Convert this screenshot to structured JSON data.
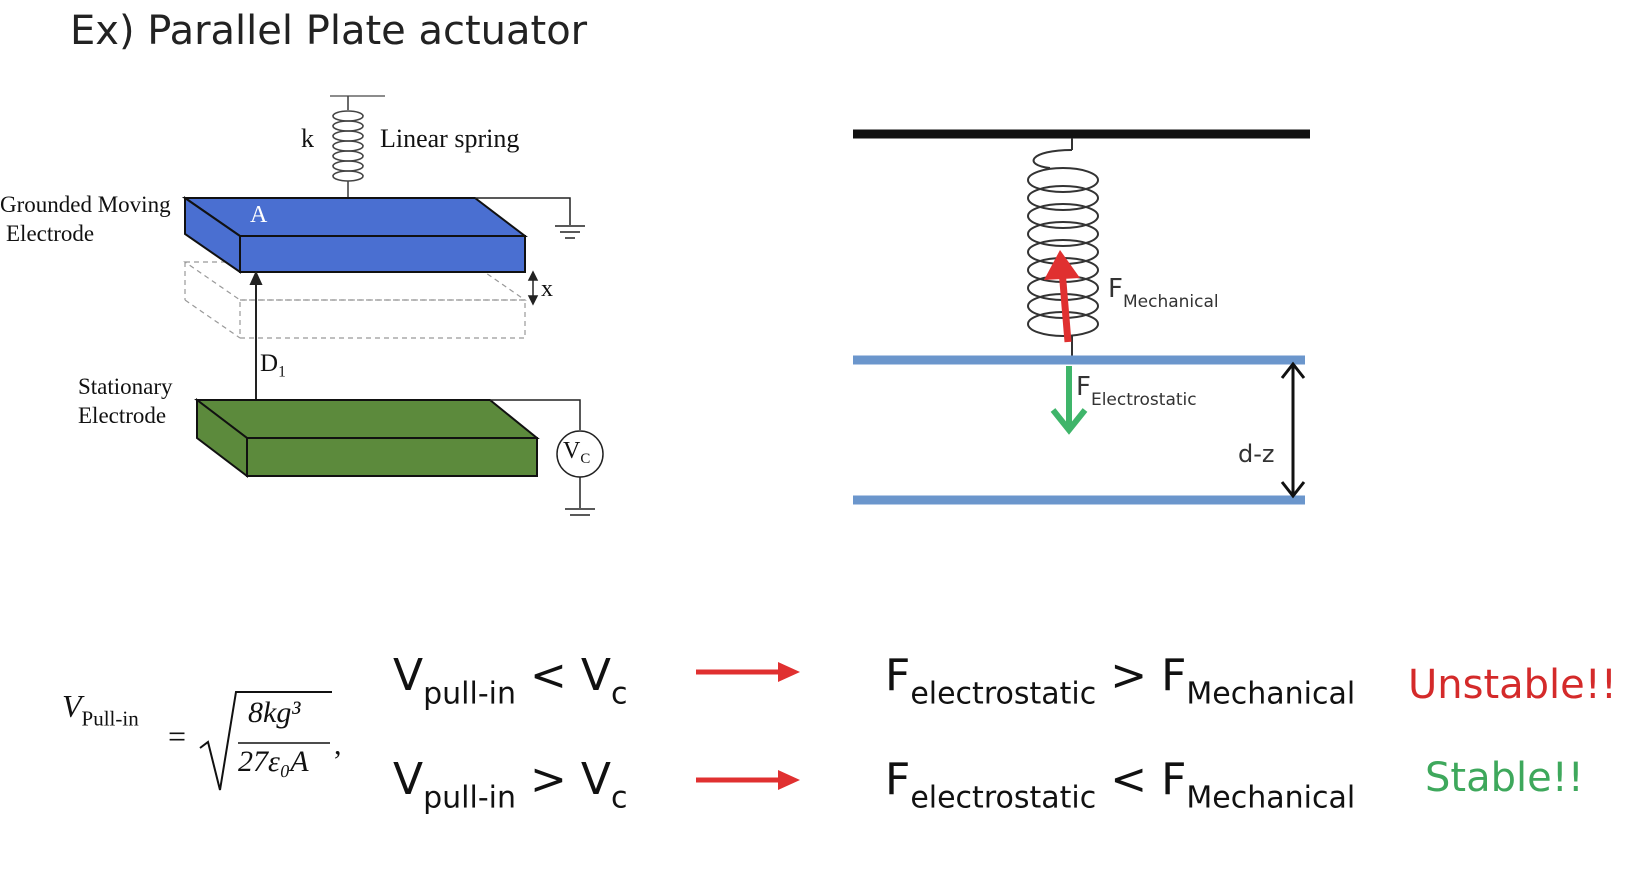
{
  "title": "Ex) Parallel Plate actuator",
  "left_diagram": {
    "spring_constant": "k",
    "spring_label": "Linear spring",
    "moving_electrode_line1": "Grounded Moving",
    "moving_electrode_line2": "Electrode",
    "area_label": "A",
    "displacement_label": "x",
    "gap_label": "D",
    "gap_label_sub": "1",
    "stationary_line1": "Stationary",
    "stationary_line2": "Electrode",
    "source_label": "V",
    "source_label_sub": "C"
  },
  "right_diagram": {
    "mech_force": "F",
    "mech_force_sub": "Mechanical",
    "es_force": "F",
    "es_force_sub": "Electrostatic",
    "gap_label": "d-z"
  },
  "equation": {
    "lhs_var": "V",
    "lhs_sub": "Pull-in",
    "equals": "=",
    "numerator": "8kg³",
    "denominator": "27ε₀A",
    "trailing": ","
  },
  "rows": [
    {
      "v_main": "V",
      "v_sub": "pull-in",
      "cmp1": "<",
      "vc_main": "V",
      "vc_sub": "c",
      "f1_main": "F",
      "f1_sub": "electrostatic",
      "cmp2": ">",
      "f2_main": "F",
      "f2_sub": "Mechanical",
      "status": "Unstable!!"
    },
    {
      "v_main": "V",
      "v_sub": "pull-in",
      "cmp1": ">",
      "vc_main": "V",
      "vc_sub": "c",
      "f1_main": "F",
      "f1_sub": "electrostatic",
      "cmp2": "<",
      "f2_main": "F",
      "f2_sub": "Mechanical",
      "status": "Stable!!"
    }
  ],
  "colors": {
    "moving_plate": "#4a6fd1",
    "stationary_plate": "#5c8a3c",
    "right_plate": "#6b96cc",
    "mech_arrow": "#e03030",
    "es_arrow": "#3fb56a",
    "row_arrow": "#e03030",
    "unstable": "#d42a2a",
    "stable": "#3ea85c"
  }
}
